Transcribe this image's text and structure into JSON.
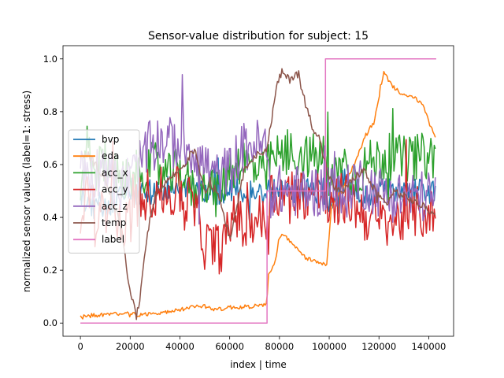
{
  "chart_data": {
    "type": "line",
    "title": "Sensor-value distribution for subject: 15",
    "xlabel": "index | time",
    "ylabel": "normalized sensor values (label=1: stress)",
    "xlim": [
      -7000,
      150000
    ],
    "ylim": [
      -0.05,
      1.05
    ],
    "xticks": [
      0,
      20000,
      40000,
      60000,
      80000,
      100000,
      120000,
      140000
    ],
    "xtick_labels": [
      "0",
      "20000",
      "40000",
      "60000",
      "80000",
      "100000",
      "120000",
      "140000"
    ],
    "yticks": [
      0.0,
      0.2,
      0.4,
      0.6,
      0.8,
      1.0
    ],
    "ytick_labels": [
      "0.0",
      "0.2",
      "0.4",
      "0.6",
      "0.8",
      "1.0"
    ],
    "grid": false,
    "legend_position": "center-left",
    "series": [
      {
        "name": "bvp",
        "color": "#1f77b4",
        "noise": 0.05,
        "points": [
          [
            0,
            0.48
          ],
          [
            5000,
            0.44
          ],
          [
            10000,
            0.45
          ],
          [
            15000,
            0.47
          ],
          [
            20000,
            0.5
          ],
          [
            25000,
            0.49
          ],
          [
            30000,
            0.5
          ],
          [
            35000,
            0.51
          ],
          [
            40000,
            0.5
          ],
          [
            45000,
            0.5
          ],
          [
            50000,
            0.5
          ],
          [
            55000,
            0.49
          ],
          [
            60000,
            0.5
          ],
          [
            65000,
            0.5
          ],
          [
            70000,
            0.5
          ],
          [
            75000,
            0.5
          ],
          [
            80000,
            0.5
          ],
          [
            85000,
            0.5
          ],
          [
            90000,
            0.5
          ],
          [
            95000,
            0.5
          ],
          [
            98000,
            0.5
          ],
          [
            100000,
            0.45
          ],
          [
            105000,
            0.55
          ],
          [
            110000,
            0.5
          ],
          [
            115000,
            0.48
          ],
          [
            120000,
            0.5
          ],
          [
            125000,
            0.51
          ],
          [
            130000,
            0.5
          ],
          [
            135000,
            0.5
          ],
          [
            140000,
            0.5
          ],
          [
            143000,
            0.51
          ]
        ]
      },
      {
        "name": "eda",
        "color": "#ff7f0e",
        "noise": 0.008,
        "points": [
          [
            0,
            0.02
          ],
          [
            5000,
            0.03
          ],
          [
            10000,
            0.03
          ],
          [
            15000,
            0.035
          ],
          [
            20000,
            0.035
          ],
          [
            25000,
            0.03
          ],
          [
            30000,
            0.04
          ],
          [
            35000,
            0.04
          ],
          [
            40000,
            0.05
          ],
          [
            45000,
            0.06
          ],
          [
            50000,
            0.065
          ],
          [
            55000,
            0.05
          ],
          [
            60000,
            0.06
          ],
          [
            65000,
            0.06
          ],
          [
            70000,
            0.065
          ],
          [
            75000,
            0.07
          ],
          [
            75500,
            0.18
          ],
          [
            78000,
            0.22
          ],
          [
            80000,
            0.33
          ],
          [
            82000,
            0.33
          ],
          [
            85000,
            0.3
          ],
          [
            90000,
            0.25
          ],
          [
            95000,
            0.23
          ],
          [
            99000,
            0.22
          ],
          [
            101000,
            0.45
          ],
          [
            105000,
            0.5
          ],
          [
            110000,
            0.6
          ],
          [
            115000,
            0.72
          ],
          [
            118000,
            0.76
          ],
          [
            120000,
            0.85
          ],
          [
            122000,
            0.95
          ],
          [
            125000,
            0.9
          ],
          [
            130000,
            0.86
          ],
          [
            135000,
            0.85
          ],
          [
            138000,
            0.82
          ],
          [
            140000,
            0.76
          ],
          [
            143000,
            0.7
          ]
        ]
      },
      {
        "name": "acc_x",
        "color": "#2ca02c",
        "noise": 0.09,
        "points": [
          [
            0,
            0.4
          ],
          [
            3000,
            0.7
          ],
          [
            6000,
            0.55
          ],
          [
            10000,
            0.62
          ],
          [
            15000,
            0.56
          ],
          [
            20000,
            0.55
          ],
          [
            25000,
            0.58
          ],
          [
            30000,
            0.6
          ],
          [
            35000,
            0.55
          ],
          [
            40000,
            0.58
          ],
          [
            45000,
            0.5
          ],
          [
            50000,
            0.55
          ],
          [
            55000,
            0.48
          ],
          [
            60000,
            0.58
          ],
          [
            65000,
            0.62
          ],
          [
            70000,
            0.58
          ],
          [
            75000,
            0.55
          ],
          [
            76000,
            0.62
          ],
          [
            80000,
            0.63
          ],
          [
            85000,
            0.64
          ],
          [
            90000,
            0.63
          ],
          [
            95000,
            0.63
          ],
          [
            98000,
            0.63
          ],
          [
            100000,
            0.5
          ],
          [
            105000,
            0.62
          ],
          [
            110000,
            0.55
          ],
          [
            115000,
            0.6
          ],
          [
            120000,
            0.62
          ],
          [
            125000,
            0.63
          ],
          [
            130000,
            0.62
          ],
          [
            135000,
            0.63
          ],
          [
            140000,
            0.63
          ],
          [
            143000,
            0.64
          ]
        ]
      },
      {
        "name": "acc_y",
        "color": "#d62728",
        "noise": 0.1,
        "points": [
          [
            0,
            0.32
          ],
          [
            3000,
            0.55
          ],
          [
            6000,
            0.38
          ],
          [
            10000,
            0.42
          ],
          [
            13000,
            0.6
          ],
          [
            15000,
            0.35
          ],
          [
            20000,
            0.4
          ],
          [
            25000,
            0.48
          ],
          [
            30000,
            0.5
          ],
          [
            35000,
            0.48
          ],
          [
            40000,
            0.5
          ],
          [
            45000,
            0.45
          ],
          [
            50000,
            0.3
          ],
          [
            55000,
            0.28
          ],
          [
            58000,
            0.3
          ],
          [
            60000,
            0.35
          ],
          [
            62000,
            0.45
          ],
          [
            65000,
            0.35
          ],
          [
            70000,
            0.4
          ],
          [
            75000,
            0.38
          ],
          [
            76000,
            0.49
          ],
          [
            80000,
            0.49
          ],
          [
            85000,
            0.49
          ],
          [
            90000,
            0.49
          ],
          [
            95000,
            0.49
          ],
          [
            98000,
            0.49
          ],
          [
            100000,
            0.4
          ],
          [
            105000,
            0.48
          ],
          [
            110000,
            0.45
          ],
          [
            115000,
            0.4
          ],
          [
            120000,
            0.38
          ],
          [
            125000,
            0.38
          ],
          [
            130000,
            0.4
          ],
          [
            135000,
            0.42
          ],
          [
            140000,
            0.41
          ],
          [
            143000,
            0.42
          ]
        ]
      },
      {
        "name": "acc_z",
        "color": "#9467bd",
        "noise": 0.1,
        "points": [
          [
            0,
            0.6
          ],
          [
            5000,
            0.55
          ],
          [
            10000,
            0.62
          ],
          [
            15000,
            0.5
          ],
          [
            20000,
            0.55
          ],
          [
            25000,
            0.62
          ],
          [
            30000,
            0.7
          ],
          [
            35000,
            0.68
          ],
          [
            40000,
            0.68
          ],
          [
            45000,
            0.66
          ],
          [
            50000,
            0.6
          ],
          [
            55000,
            0.55
          ],
          [
            60000,
            0.58
          ],
          [
            65000,
            0.66
          ],
          [
            70000,
            0.68
          ],
          [
            75000,
            0.66
          ],
          [
            76000,
            0.5
          ],
          [
            80000,
            0.5
          ],
          [
            85000,
            0.5
          ],
          [
            90000,
            0.5
          ],
          [
            95000,
            0.5
          ],
          [
            98000,
            0.5
          ],
          [
            100000,
            0.55
          ],
          [
            105000,
            0.45
          ],
          [
            110000,
            0.55
          ],
          [
            115000,
            0.52
          ],
          [
            120000,
            0.5
          ],
          [
            125000,
            0.48
          ],
          [
            130000,
            0.48
          ],
          [
            135000,
            0.48
          ],
          [
            140000,
            0.48
          ],
          [
            143000,
            0.48
          ]
        ]
      },
      {
        "name": "temp",
        "color": "#8c564b",
        "noise": 0.015,
        "points": [
          [
            0,
            0.62
          ],
          [
            3000,
            0.64
          ],
          [
            6000,
            0.6
          ],
          [
            10000,
            0.55
          ],
          [
            13000,
            0.45
          ],
          [
            16000,
            0.38
          ],
          [
            19000,
            0.18
          ],
          [
            21000,
            0.08
          ],
          [
            22500,
            0.02
          ],
          [
            24000,
            0.1
          ],
          [
            26000,
            0.28
          ],
          [
            28000,
            0.4
          ],
          [
            30000,
            0.48
          ],
          [
            33000,
            0.52
          ],
          [
            36000,
            0.55
          ],
          [
            40000,
            0.58
          ],
          [
            43000,
            0.62
          ],
          [
            46000,
            0.66
          ],
          [
            48000,
            0.58
          ],
          [
            50000,
            0.5
          ],
          [
            52000,
            0.52
          ],
          [
            55000,
            0.5
          ],
          [
            58000,
            0.4
          ],
          [
            60000,
            0.32
          ],
          [
            62000,
            0.4
          ],
          [
            65000,
            0.55
          ],
          [
            68000,
            0.62
          ],
          [
            72000,
            0.64
          ],
          [
            75000,
            0.66
          ],
          [
            77000,
            0.78
          ],
          [
            79000,
            0.9
          ],
          [
            81000,
            0.95
          ],
          [
            84000,
            0.92
          ],
          [
            87000,
            0.95
          ],
          [
            90000,
            0.85
          ],
          [
            93000,
            0.75
          ],
          [
            96000,
            0.7
          ],
          [
            98000,
            0.62
          ],
          [
            100000,
            0.55
          ],
          [
            103000,
            0.5
          ],
          [
            106000,
            0.5
          ],
          [
            110000,
            0.55
          ],
          [
            114000,
            0.58
          ],
          [
            117000,
            0.52
          ],
          [
            120000,
            0.48
          ],
          [
            123000,
            0.45
          ],
          [
            126000,
            0.5
          ],
          [
            130000,
            0.48
          ],
          [
            134000,
            0.46
          ],
          [
            138000,
            0.44
          ],
          [
            140000,
            0.43
          ],
          [
            143000,
            0.4
          ]
        ]
      },
      {
        "name": "label",
        "color": "#e377c2",
        "noise": 0,
        "points": [
          [
            0,
            0.0
          ],
          [
            75000,
            0.0
          ],
          [
            75000,
            0.5
          ],
          [
            98500,
            0.5
          ],
          [
            98500,
            1.0
          ],
          [
            143000,
            1.0
          ]
        ]
      }
    ]
  }
}
